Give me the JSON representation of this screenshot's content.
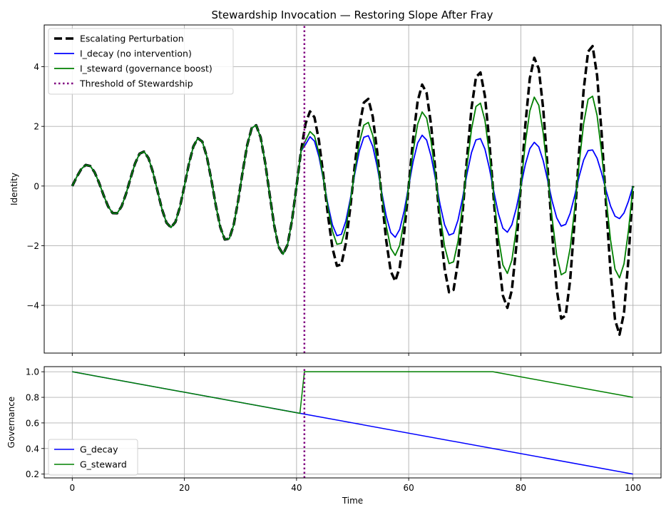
{
  "title": "Stewardship Invocation — Restoring Slope After Fray",
  "threshold_time": 41.4,
  "chart_data": [
    {
      "type": "line",
      "title": "Stewardship Invocation — Restoring Slope After Fray",
      "xlabel": "",
      "ylabel": "Identity",
      "xlim": [
        -5,
        105
      ],
      "ylim": [
        -5.6,
        5.4
      ],
      "xticks": [
        0,
        20,
        40,
        60,
        80,
        100
      ],
      "yticks": [
        -4,
        -2,
        0,
        2,
        4
      ],
      "grid": true,
      "legend": "top-left",
      "series": [
        {
          "name": "Escalating Perturbation",
          "color": "#000000",
          "style": "dashed",
          "width": 3.5,
          "formula": "(0.6 + 0.045*t) * sin(2*pi*t/10)",
          "x_range": [
            0,
            100
          ],
          "sample_step": 0.8
        },
        {
          "name": "I_decay (no intervention)",
          "color": "#0000ff",
          "style": "solid",
          "width": 1.8,
          "formula": "t<41.4: perturbation; t>=41.4: (0.6+0.045*t)*G_decay(t)*sin(2*pi*t/10)",
          "x_range": [
            0,
            100
          ],
          "sample_step": 0.8
        },
        {
          "name": "I_steward (governance boost)",
          "color": "#008000",
          "style": "solid",
          "width": 1.8,
          "formula": "t<41.4: perturbation; t>=41.4: (0.6+0.045*t)*(0.62*G_steward(t)+0.11)*sin(2*pi*t/10)",
          "x_range": [
            0,
            100
          ],
          "sample_step": 0.8
        },
        {
          "name": "Threshold of Stewardship",
          "color": "#800080",
          "style": "dotted",
          "width": 2.5,
          "x": [
            41.4,
            41.4
          ],
          "y": [
            -5.6,
            5.4
          ]
        }
      ]
    },
    {
      "type": "line",
      "xlabel": "Time",
      "ylabel": "Governance",
      "xlim": [
        -5,
        105
      ],
      "ylim": [
        0.17,
        1.04
      ],
      "xticks": [
        0,
        20,
        40,
        60,
        80,
        100
      ],
      "yticks": [
        0.2,
        0.4,
        0.6,
        0.8,
        1.0
      ],
      "ytick_labels": [
        "0.2",
        "0.4",
        "0.6",
        "0.8",
        "1.0"
      ],
      "grid": true,
      "legend": "bottom-left",
      "series": [
        {
          "name": "G_decay",
          "color": "#0000ff",
          "style": "solid",
          "width": 1.5,
          "x": [
            0,
            100
          ],
          "y": [
            1.0,
            0.2
          ]
        },
        {
          "name": "G_steward",
          "color": "#008000",
          "style": "solid",
          "width": 1.5,
          "x": [
            0,
            40.6,
            41.4,
            75,
            100
          ],
          "y": [
            1.0,
            0.675,
            1.0,
            1.0,
            0.8
          ]
        },
        {
          "name": "",
          "color": "#800080",
          "style": "dotted",
          "width": 2.5,
          "x": [
            41.4,
            41.4
          ],
          "y": [
            0.17,
            1.04
          ]
        }
      ]
    }
  ]
}
